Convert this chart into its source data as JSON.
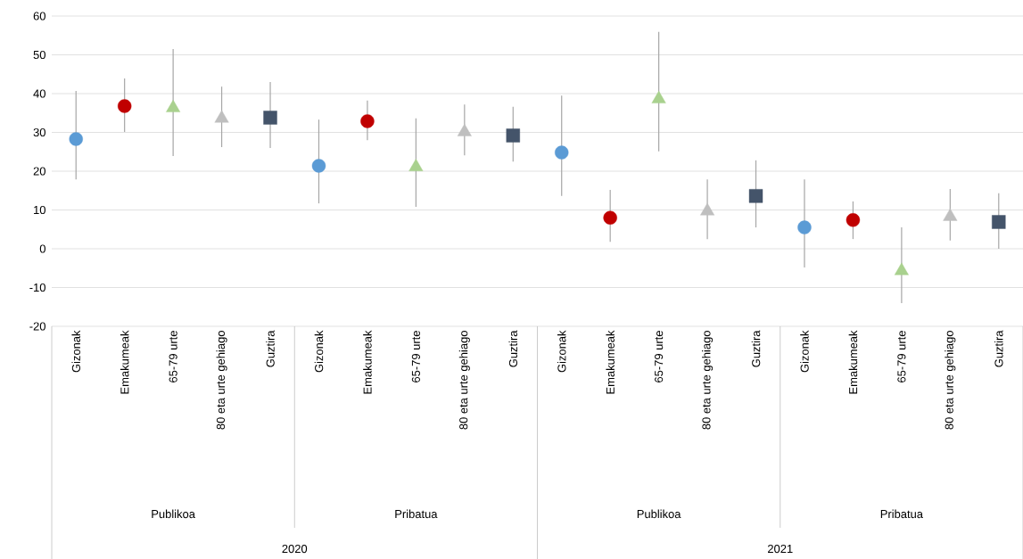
{
  "chart_data": {
    "type": "scatter",
    "categories": [
      "Gizonak",
      "Emakumeak",
      "65-79 urte",
      "80 eta urte gehiago",
      "Guztira",
      "Gizonak",
      "Emakumeak",
      "65-79 urte",
      "80 eta urte gehiago",
      "Guztira",
      "Gizonak",
      "Emakumeak",
      "65-79 urte",
      "80 eta urte gehiago",
      "Guztira",
      "Gizonak",
      "Emakumeak",
      "65-79 urte",
      "80 eta urte gehiago",
      "Guztira"
    ],
    "series": [
      {
        "color": "#5b9bd5",
        "marker": "circle",
        "values": [
          28.3,
          null,
          null,
          null,
          null,
          21.4,
          null,
          null,
          null,
          null,
          24.8,
          null,
          null,
          null,
          null,
          5.5,
          null,
          null,
          null,
          null
        ],
        "errors": [
          [
            17.9,
            40.7
          ],
          null,
          null,
          null,
          null,
          [
            11.7,
            33.3
          ],
          null,
          null,
          null,
          null,
          [
            13.6,
            39.5
          ],
          null,
          null,
          null,
          null,
          [
            -4.8,
            17.9
          ],
          null,
          null,
          null,
          null
        ]
      },
      {
        "color": "#c00000",
        "marker": "circle",
        "values": [
          null,
          36.8,
          null,
          null,
          null,
          null,
          32.9,
          null,
          null,
          null,
          null,
          8.0,
          null,
          null,
          null,
          null,
          7.4,
          null,
          null,
          null
        ],
        "errors": [
          null,
          [
            30.1,
            43.9
          ],
          null,
          null,
          null,
          null,
          [
            28.0,
            38.2
          ],
          null,
          null,
          null,
          null,
          [
            1.8,
            15.2
          ],
          null,
          null,
          null,
          null,
          [
            2.5,
            12.2
          ],
          null,
          null,
          null
        ]
      },
      {
        "color": "#a9d18e",
        "marker": "triangle",
        "values": [
          null,
          null,
          36.3,
          null,
          null,
          null,
          null,
          21.1,
          null,
          null,
          null,
          null,
          38.6,
          null,
          null,
          null,
          null,
          -5.7,
          null,
          null
        ],
        "errors": [
          null,
          null,
          [
            23.9,
            51.5
          ],
          null,
          null,
          null,
          null,
          [
            10.8,
            33.6
          ],
          null,
          null,
          null,
          null,
          [
            25.1,
            55.9
          ],
          null,
          null,
          null,
          null,
          [
            -14.0,
            5.5
          ],
          null,
          null
        ]
      },
      {
        "color": "#bfbfbf",
        "marker": "triangle",
        "values": [
          null,
          null,
          null,
          33.6,
          null,
          null,
          null,
          null,
          30.1,
          null,
          null,
          null,
          null,
          9.7,
          null,
          null,
          null,
          null,
          8.3,
          null
        ],
        "errors": [
          null,
          null,
          null,
          [
            26.2,
            41.8
          ],
          null,
          null,
          null,
          null,
          [
            24.1,
            37.2
          ],
          null,
          null,
          null,
          null,
          [
            2.5,
            17.9
          ],
          null,
          null,
          null,
          null,
          [
            2.1,
            15.4
          ],
          null
        ]
      },
      {
        "color": "#44546a",
        "marker": "square",
        "values": [
          null,
          null,
          null,
          null,
          33.8,
          null,
          null,
          null,
          null,
          29.2,
          null,
          null,
          null,
          null,
          13.6,
          null,
          null,
          null,
          null,
          6.9
        ],
        "errors": [
          null,
          null,
          null,
          null,
          [
            26.0,
            43.0
          ],
          null,
          null,
          null,
          null,
          [
            22.5,
            36.6
          ],
          null,
          null,
          null,
          null,
          [
            5.5,
            22.8
          ],
          null,
          null,
          null,
          null,
          [
            0.0,
            14.3
          ]
        ]
      }
    ],
    "annotations": [
      "Publikoa",
      "Pribatua",
      "Publikoa",
      "Pribatua",
      "2020",
      "2021"
    ],
    "ylim": [
      -20,
      60
    ],
    "yticks": [
      -20,
      -10,
      0,
      10,
      20,
      30,
      40,
      50,
      60
    ],
    "grid": "y"
  }
}
